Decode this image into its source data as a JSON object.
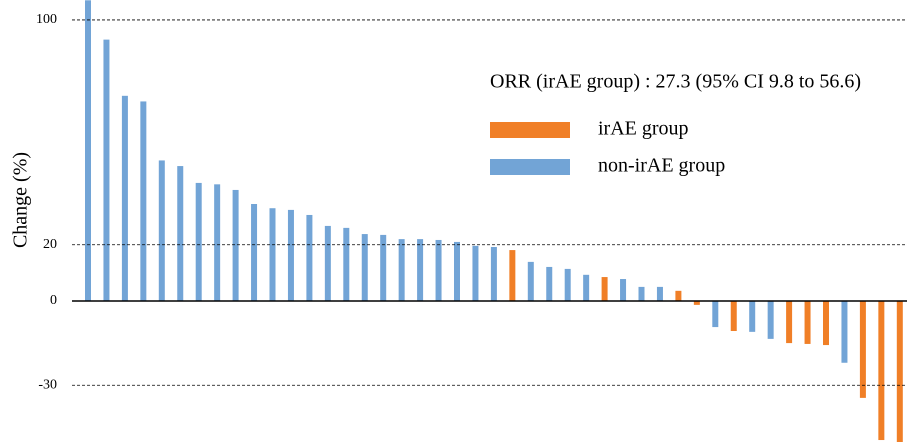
{
  "chart_data": {
    "type": "bar",
    "ylabel": "Change (%)",
    "annotation": "ORR (irAE group) : 27.3 (95% CI 9.8 to 56.6)",
    "ylim": [
      -50.2,
      107.1
    ],
    "yticks": [
      100,
      20,
      0,
      -30
    ],
    "grid": true,
    "legend": "upper right",
    "series": [
      {
        "name": "irAE group",
        "color": "#f07f27",
        "values": [
          null,
          null,
          null,
          null,
          null,
          null,
          null,
          null,
          null,
          null,
          null,
          null,
          null,
          null,
          null,
          null,
          null,
          null,
          null,
          null,
          null,
          null,
          null,
          18.1,
          null,
          null,
          null,
          null,
          8.5,
          null,
          null,
          null,
          3.6,
          -1.4,
          null,
          -10.7,
          null,
          null,
          -15,
          -15.3,
          -15.7,
          null,
          -34.5,
          -49.5,
          -50.2
        ]
      },
      {
        "name": "non-irAE group",
        "color": "#72a4d6",
        "values": [
          107,
          93,
          73,
          71,
          50,
          48,
          42,
          41.5,
          39.5,
          34.5,
          33,
          32.4,
          30.6,
          26.7,
          26,
          23.8,
          23.5,
          22,
          22,
          21.7,
          21,
          19.6,
          19.2,
          null,
          13.9,
          12.1,
          11.4,
          9.3,
          null,
          7.8,
          5,
          5,
          null,
          null,
          -9.3,
          null,
          -11,
          -13.5,
          null,
          null,
          null,
          -22,
          null,
          null,
          null
        ]
      }
    ]
  }
}
